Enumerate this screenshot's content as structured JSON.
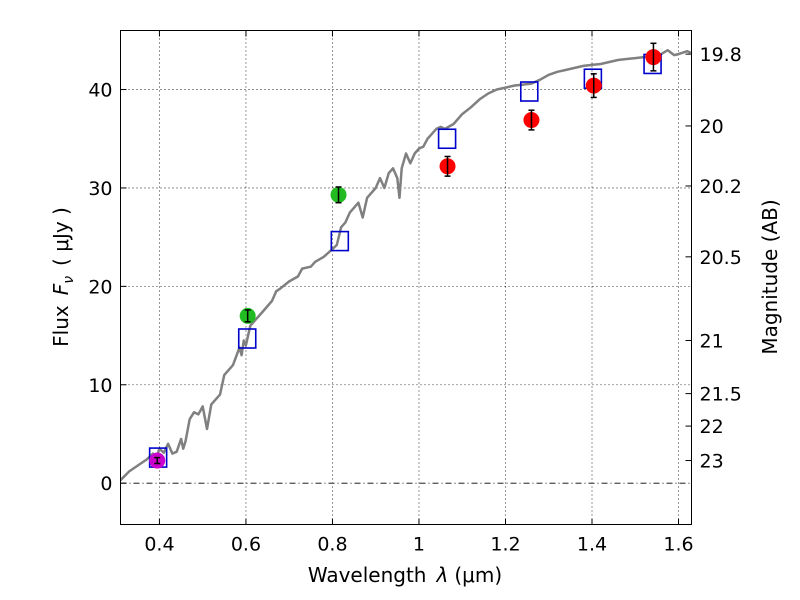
{
  "chart_data": {
    "type": "scatter",
    "xlabel": "Wavelength",
    "xlabel_symbol": "λ",
    "xlabel_unit": "(μm)",
    "ylabel": "Flux",
    "ylabel_symbol": "F",
    "ylabel_subscript": "ν",
    "ylabel_unit": "( μJy )",
    "y2label": "Magnitude (AB)",
    "xlim": [
      0.31,
      1.63
    ],
    "ylim": [
      -4.2,
      46
    ],
    "x_ticks": [
      0.4,
      0.6,
      0.8,
      1.0,
      1.2,
      1.4,
      1.6
    ],
    "x_tick_labels": [
      "0.4",
      "0.6",
      "0.8",
      "1",
      "1.2",
      "1.4",
      "1.6"
    ],
    "y_ticks": [
      0,
      10,
      20,
      30,
      40
    ],
    "y_tick_labels": [
      "0",
      "10",
      "20",
      "30",
      "40"
    ],
    "y2_ticks": [
      {
        "flux": 43.6,
        "label": "19.8"
      },
      {
        "flux": 36.3,
        "label": "20"
      },
      {
        "flux": 30.2,
        "label": "20.2"
      },
      {
        "flux": 23.0,
        "label": "20.5"
      },
      {
        "flux": 14.5,
        "label": "21"
      },
      {
        "flux": 9.1,
        "label": "21.5"
      },
      {
        "flux": 5.8,
        "label": "22"
      },
      {
        "flux": 2.3,
        "label": "23"
      }
    ],
    "grid": true,
    "zero_line": true,
    "colors": {
      "model_line": "#808080",
      "model_points": "#0000cc",
      "series_uv": "#cc00cc",
      "series_optical": "#22bb22",
      "series_ir": "#ff0000",
      "errorbar": "#000000"
    },
    "observed": [
      {
        "x": 0.395,
        "y": 2.3,
        "err": 0.3,
        "series": "uv"
      },
      {
        "x": 0.604,
        "y": 17.0,
        "err": 0.6,
        "series": "optical"
      },
      {
        "x": 0.814,
        "y": 29.3,
        "err": 0.8,
        "series": "optical"
      },
      {
        "x": 1.066,
        "y": 32.2,
        "err": 1.0,
        "series": "ir"
      },
      {
        "x": 1.26,
        "y": 36.9,
        "err": 1.0,
        "series": "ir"
      },
      {
        "x": 1.404,
        "y": 40.4,
        "err": 1.2,
        "series": "ir"
      },
      {
        "x": 1.542,
        "y": 43.3,
        "err": 1.4,
        "series": "ir"
      }
    ],
    "model_points": [
      {
        "x": 0.397,
        "y": 2.6
      },
      {
        "x": 0.603,
        "y": 14.7
      },
      {
        "x": 0.817,
        "y": 24.6
      },
      {
        "x": 1.065,
        "y": 35.0
      },
      {
        "x": 1.255,
        "y": 39.8
      },
      {
        "x": 1.402,
        "y": 41.1
      },
      {
        "x": 1.54,
        "y": 42.6
      }
    ],
    "model_spectrum": [
      [
        0.31,
        0.3
      ],
      [
        0.33,
        1.2
      ],
      [
        0.35,
        1.8
      ],
      [
        0.37,
        2.4
      ],
      [
        0.385,
        3.0
      ],
      [
        0.39,
        2.2
      ],
      [
        0.4,
        3.5
      ],
      [
        0.41,
        3.1
      ],
      [
        0.42,
        4.0
      ],
      [
        0.43,
        3.0
      ],
      [
        0.44,
        3.2
      ],
      [
        0.45,
        4.5
      ],
      [
        0.455,
        3.5
      ],
      [
        0.46,
        4.2
      ],
      [
        0.47,
        6.5
      ],
      [
        0.48,
        7.2
      ],
      [
        0.49,
        7.0
      ],
      [
        0.5,
        7.8
      ],
      [
        0.51,
        5.5
      ],
      [
        0.52,
        8.0
      ],
      [
        0.54,
        9.0
      ],
      [
        0.55,
        11.0
      ],
      [
        0.57,
        12.0
      ],
      [
        0.585,
        13.8
      ],
      [
        0.59,
        13.0
      ],
      [
        0.595,
        14.5
      ],
      [
        0.6,
        14.0
      ],
      [
        0.61,
        16.0
      ],
      [
        0.62,
        16.5
      ],
      [
        0.64,
        17.5
      ],
      [
        0.65,
        18.0
      ],
      [
        0.66,
        18.5
      ],
      [
        0.67,
        19.5
      ],
      [
        0.68,
        19.8
      ],
      [
        0.7,
        20.5
      ],
      [
        0.72,
        21.0
      ],
      [
        0.73,
        21.8
      ],
      [
        0.75,
        22.0
      ],
      [
        0.76,
        22.5
      ],
      [
        0.78,
        23.0
      ],
      [
        0.8,
        23.8
      ],
      [
        0.81,
        24.2
      ],
      [
        0.82,
        26.0
      ],
      [
        0.83,
        26.5
      ],
      [
        0.84,
        27.5
      ],
      [
        0.86,
        28.5
      ],
      [
        0.87,
        27.0
      ],
      [
        0.88,
        29.0
      ],
      [
        0.9,
        30.0
      ],
      [
        0.91,
        31.0
      ],
      [
        0.92,
        30.0
      ],
      [
        0.93,
        31.5
      ],
      [
        0.94,
        32.0
      ],
      [
        0.95,
        31.0
      ],
      [
        0.955,
        29.0
      ],
      [
        0.96,
        32.0
      ],
      [
        0.97,
        33.5
      ],
      [
        0.98,
        32.5
      ],
      [
        0.99,
        33.5
      ],
      [
        1.0,
        34.0
      ],
      [
        1.01,
        34.2
      ],
      [
        1.02,
        35.0
      ],
      [
        1.04,
        36.0
      ],
      [
        1.05,
        36.2
      ],
      [
        1.06,
        36.0
      ],
      [
        1.08,
        36.5
      ],
      [
        1.1,
        37.5
      ],
      [
        1.12,
        38.2
      ],
      [
        1.14,
        39.0
      ],
      [
        1.16,
        39.6
      ],
      [
        1.18,
        40.0
      ],
      [
        1.2,
        40.2
      ],
      [
        1.22,
        40.4
      ],
      [
        1.24,
        40.5
      ],
      [
        1.26,
        40.6
      ],
      [
        1.28,
        41.0
      ],
      [
        1.3,
        41.5
      ],
      [
        1.32,
        41.8
      ],
      [
        1.34,
        42.0
      ],
      [
        1.36,
        42.2
      ],
      [
        1.38,
        42.4
      ],
      [
        1.4,
        42.5
      ],
      [
        1.42,
        42.6
      ],
      [
        1.44,
        42.8
      ],
      [
        1.46,
        43.0
      ],
      [
        1.48,
        43.1
      ],
      [
        1.5,
        43.2
      ],
      [
        1.52,
        43.3
      ],
      [
        1.54,
        43.4
      ],
      [
        1.56,
        43.6
      ],
      [
        1.575,
        44.0
      ],
      [
        1.59,
        43.5
      ],
      [
        1.6,
        43.6
      ],
      [
        1.62,
        43.9
      ],
      [
        1.63,
        43.7
      ]
    ]
  }
}
